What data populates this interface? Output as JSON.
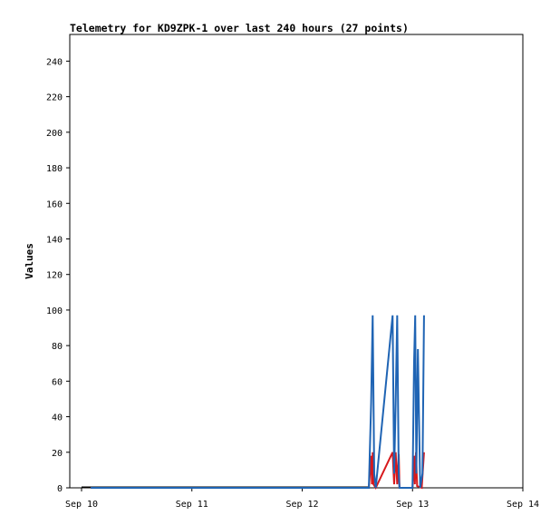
{
  "chart_data": {
    "type": "line",
    "title": "Telemetry for KD9ZPK-1 over last 240 hours (27 points)",
    "xlabel": "",
    "ylabel": "Values",
    "xlim": [
      "Sep 10",
      "Sep 14"
    ],
    "ylim": [
      0,
      255
    ],
    "x_tick_labels": [
      "Sep 10",
      "Sep 11",
      "Sep 12",
      "Sep 13",
      "Sep 14"
    ],
    "y_ticks": [
      0,
      20,
      40,
      60,
      80,
      100,
      120,
      140,
      160,
      180,
      200,
      220,
      240
    ],
    "grid": false,
    "legend": "none",
    "series": [
      {
        "color": "#d7191c",
        "points": [
          [
            "Sep 10 02:00",
            0
          ],
          [
            "Sep 12 14:30",
            0
          ],
          [
            "Sep 12 15:00",
            18
          ],
          [
            "Sep 12 15:10",
            2
          ],
          [
            "Sep 12 15:20",
            20
          ],
          [
            "Sep 12 15:30",
            2
          ],
          [
            "Sep 12 16:00",
            0
          ],
          [
            "Sep 12 19:40",
            20
          ],
          [
            "Sep 12 20:00",
            2
          ],
          [
            "Sep 12 20:20",
            20
          ],
          [
            "Sep 12 20:40",
            2
          ],
          [
            "Sep 12 21:00",
            19
          ],
          [
            "Sep 12 21:10",
            0
          ],
          [
            "Sep 13 00:00",
            0
          ],
          [
            "Sep 13 00:20",
            18
          ],
          [
            "Sep 13 00:30",
            2
          ],
          [
            "Sep 13 00:45",
            20
          ],
          [
            "Sep 13 01:00",
            1
          ],
          [
            "Sep 13 02:00",
            0
          ],
          [
            "Sep 13 02:30",
            20
          ]
        ]
      },
      {
        "color": "#1f64b4",
        "points": [
          [
            "Sep 10 02:00",
            0
          ],
          [
            "Sep 12 14:30",
            0
          ],
          [
            "Sep 12 15:00",
            48
          ],
          [
            "Sep 12 15:20",
            97
          ],
          [
            "Sep 12 15:40",
            8
          ],
          [
            "Sep 12 16:00",
            0
          ],
          [
            "Sep 12 19:40",
            97
          ],
          [
            "Sep 12 20:00",
            8
          ],
          [
            "Sep 12 20:20",
            48
          ],
          [
            "Sep 12 20:40",
            97
          ],
          [
            "Sep 12 21:00",
            8
          ],
          [
            "Sep 12 21:10",
            0
          ],
          [
            "Sep 13 00:00",
            0
          ],
          [
            "Sep 13 00:20",
            70
          ],
          [
            "Sep 13 00:35",
            97
          ],
          [
            "Sep 13 00:50",
            8
          ],
          [
            "Sep 13 01:10",
            78
          ],
          [
            "Sep 13 01:40",
            0
          ],
          [
            "Sep 13 02:10",
            8
          ],
          [
            "Sep 13 02:30",
            97
          ]
        ]
      }
    ]
  }
}
